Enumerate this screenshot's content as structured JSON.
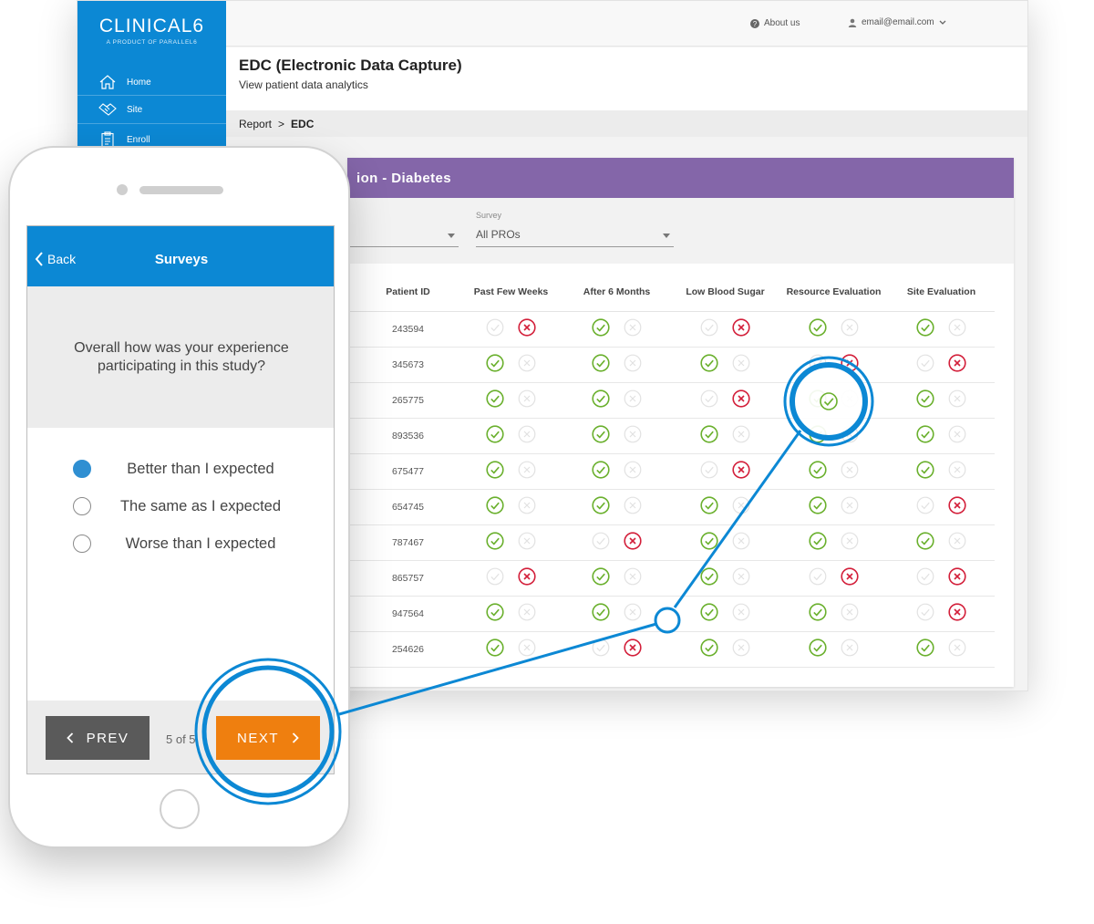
{
  "colors": {
    "accent": "#0c88d4",
    "card_header": "#8466a9",
    "next_button": "#ef7f0f",
    "check": "#6ab02d",
    "cross": "#d31f3a"
  },
  "sidebar": {
    "logo": "CLINICAL6",
    "logo_sub": "A PRODUCT OF PARALLEL6",
    "items": [
      {
        "label": "Home",
        "icon": "home-icon"
      },
      {
        "label": "Site",
        "icon": "handshake-icon"
      },
      {
        "label": "Enroll",
        "icon": "clipboard-icon"
      }
    ]
  },
  "topbar": {
    "about": "About us",
    "user": "email@email.com"
  },
  "header": {
    "title": "EDC (Electronic Data Capture)",
    "subtitle": "View patient data analytics"
  },
  "breadcrumb": {
    "parent": "Report",
    "separator": ">",
    "current": "EDC"
  },
  "card": {
    "title": "ion - Diabetes",
    "survey_filter": {
      "caption": "Survey",
      "value": "All PROs"
    },
    "columns": [
      "Patient ID",
      "Past Few Weeks",
      "After 6 Months",
      "Low Blood Sugar",
      "Resource Evaluation",
      "Site Evaluation"
    ],
    "rows": [
      {
        "id": "243594",
        "status": [
          "no",
          "no",
          "yes",
          "yes",
          "no",
          "no",
          "yes",
          "yes",
          "yes",
          "yes"
        ]
      },
      {
        "id": "345673",
        "status": [
          "yes",
          "yes",
          "yes",
          "yes",
          "yes",
          "yes",
          "no",
          "no",
          "no",
          "no"
        ]
      },
      {
        "id": "265775",
        "status": [
          "yes",
          "yes",
          "yes",
          "yes",
          "no",
          "no",
          "yes",
          "yes",
          "yes",
          "yes"
        ]
      },
      {
        "id": "893536",
        "status": [
          "yes",
          "yes",
          "yes",
          "yes",
          "yes",
          "yes",
          "yes",
          "yes",
          "yes",
          "yes"
        ]
      },
      {
        "id": "675477",
        "status": [
          "yes",
          "yes",
          "yes",
          "yes",
          "no",
          "no",
          "yes",
          "yes",
          "yes",
          "yes"
        ]
      },
      {
        "id": "654745",
        "status": [
          "yes",
          "yes",
          "yes",
          "yes",
          "yes",
          "yes",
          "yes",
          "yes",
          "no",
          "no"
        ]
      },
      {
        "id": "787467",
        "status": [
          "yes",
          "yes",
          "no",
          "no",
          "yes",
          "yes",
          "yes",
          "yes",
          "yes",
          "yes"
        ]
      },
      {
        "id": "865757",
        "status": [
          "no",
          "no",
          "yes",
          "yes",
          "yes",
          "yes",
          "no",
          "no",
          "no",
          "no"
        ]
      },
      {
        "id": "947564",
        "status": [
          "yes",
          "yes",
          "yes",
          "yes",
          "yes",
          "yes",
          "yes",
          "yes",
          "no",
          "no"
        ]
      },
      {
        "id": "254626",
        "status": [
          "yes",
          "yes",
          "no",
          "no",
          "yes",
          "yes",
          "yes",
          "yes",
          "yes",
          "yes"
        ]
      }
    ]
  },
  "phone": {
    "back": "Back",
    "title": "Surveys",
    "question": "Overall how was your experience participating in this study?",
    "options": [
      {
        "label": "Better than I expected",
        "selected": true
      },
      {
        "label": "The same as I expected",
        "selected": false
      },
      {
        "label": "Worse than I expected",
        "selected": false
      }
    ],
    "prev": "PREV",
    "next": "NEXT",
    "page": "5 of 5"
  }
}
